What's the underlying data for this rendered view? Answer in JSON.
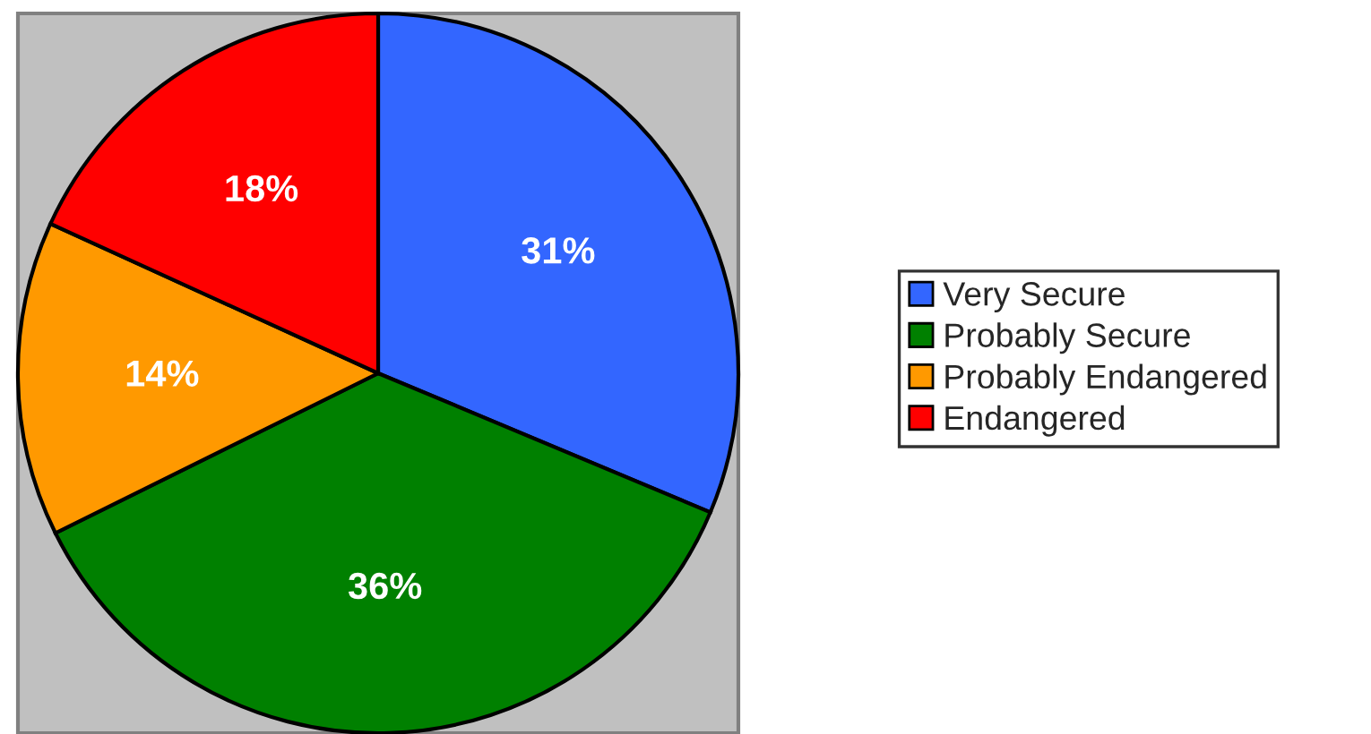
{
  "chart_data": {
    "type": "pie",
    "categories": [
      "Very Secure",
      "Probably Secure",
      "Probably Endangered",
      "Endangered"
    ],
    "values": [
      31,
      36,
      14,
      18
    ],
    "value_labels": [
      "31%",
      "36%",
      "14%",
      "18%"
    ],
    "colors": [
      "#3366ff",
      "#008000",
      "#ff9900",
      "#ff0000"
    ],
    "legend": "right"
  }
}
